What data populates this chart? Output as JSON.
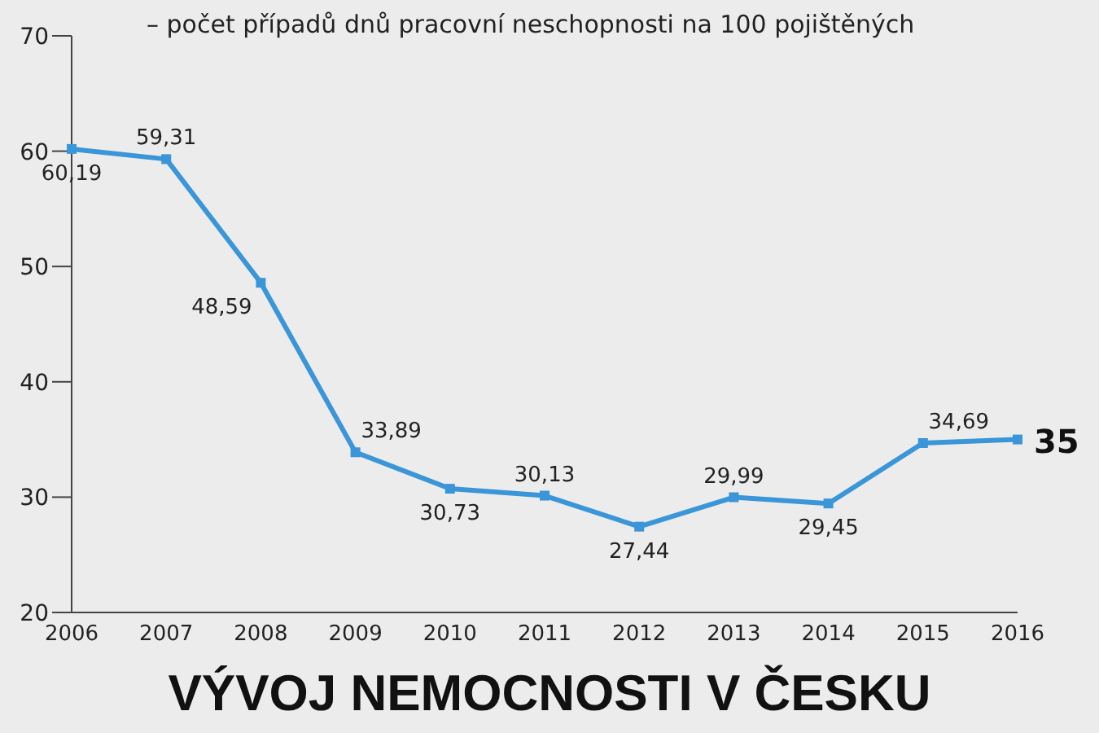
{
  "chart_data": {
    "type": "line",
    "title": "VÝVOJ NEMOCNOSTI V ČESKU",
    "subtitle": "– počet případů dnů pracovní neschopnosti na 100 pojištěných",
    "categories": [
      "2006",
      "2007",
      "2008",
      "2009",
      "2010",
      "2011",
      "2012",
      "2013",
      "2014",
      "2015",
      "2016"
    ],
    "series": [
      {
        "color": "#3a96d8",
        "values": [
          60.19,
          59.31,
          48.59,
          33.89,
          30.73,
          30.13,
          27.44,
          29.99,
          29.45,
          34.69,
          35
        ],
        "value_labels": [
          "60,19",
          "59,31",
          "48,59",
          "33,89",
          "30,73",
          "30,13",
          "27,44",
          "29,99",
          "29,45",
          "34,69",
          "35"
        ]
      }
    ],
    "ylim": [
      20,
      70
    ],
    "yticks": [
      20,
      30,
      40,
      50,
      60,
      70
    ],
    "marker": "square",
    "line_style": "solid"
  }
}
